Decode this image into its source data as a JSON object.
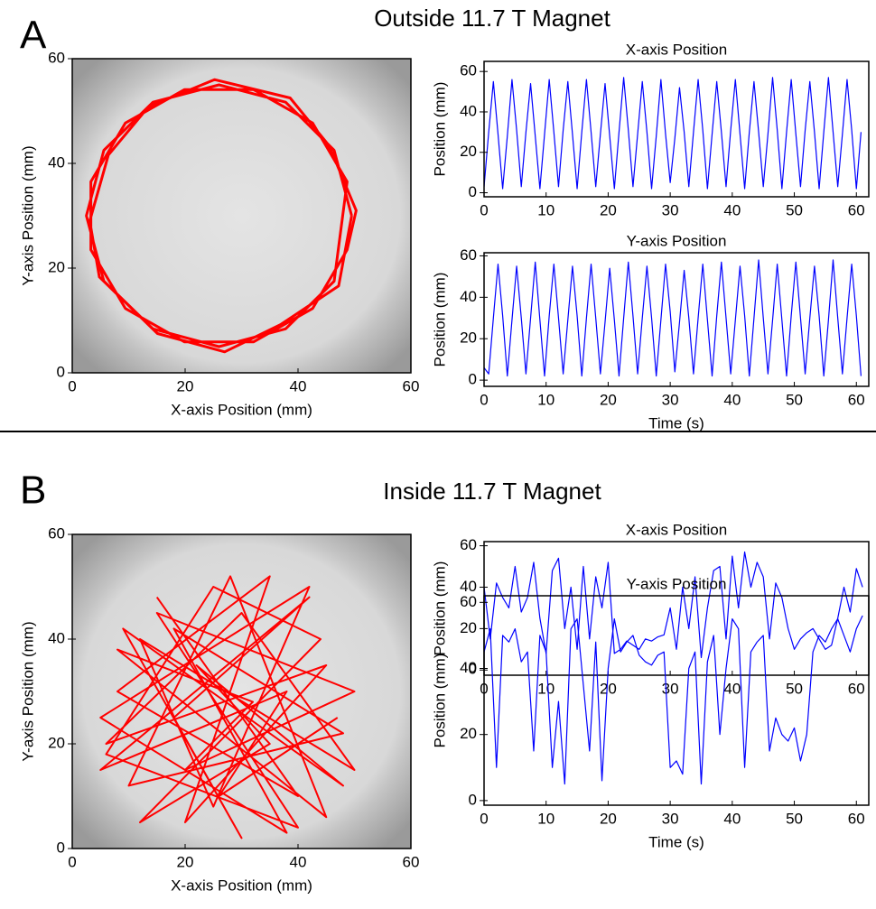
{
  "figure": {
    "panels": [
      {
        "label": "A",
        "title": "Outside 11.7 T Magnet"
      },
      {
        "label": "B",
        "title": "Inside 11.7 T Magnet"
      }
    ]
  },
  "chart_data": [
    {
      "type": "line",
      "xlabel": "X-axis Position (mm)",
      "ylabel": "Y-axis Position (mm)",
      "xlim": [
        0,
        60
      ],
      "ylim": [
        0,
        60
      ],
      "xticks": [
        0,
        20,
        40,
        60
      ],
      "yticks": [
        0,
        20,
        40,
        60
      ],
      "x": [
        49.5,
        46.4,
        37.8,
        26,
        14.3,
        5.6,
        2.5,
        5.6,
        14.3,
        26,
        37.8,
        46.4,
        48.7,
        42.6,
        32.1,
        19.9,
        9.4,
        3.3,
        3.3,
        9.4,
        19.9,
        32.1,
        42.6,
        48.7,
        50.3,
        45.5,
        38.6,
        25.2,
        13.5,
        6.4,
        3.1,
        4.8,
        15.1,
        27,
        36.9,
        47.2,
        49.5
      ],
      "series": [
        {
          "color": "#ff0000",
          "values": [
            30,
            42.5,
            51.7,
            55,
            51.7,
            42.5,
            30,
            17.5,
            8.4,
            5,
            8.4,
            17.5,
            36.5,
            47.7,
            54.1,
            54.1,
            47.7,
            36.5,
            23.5,
            12.3,
            5.9,
            5.9,
            12.3,
            23.5,
            31,
            43.4,
            52.5,
            56,
            50.8,
            41.6,
            29,
            18.3,
            7.5,
            4,
            9.2,
            16.6,
            30
          ]
        }
      ]
    },
    {
      "type": "line",
      "title": "X-axis Position",
      "ylabel": "Position (mm)",
      "xlim": [
        0,
        62
      ],
      "ylim": [
        -2,
        65
      ],
      "xticks": [
        0,
        10,
        20,
        30,
        40,
        50,
        60
      ],
      "yticks": [
        0,
        20,
        40,
        60
      ],
      "x": [
        0,
        0.75,
        1.5,
        2.25,
        3,
        3.75,
        4.5,
        5.25,
        6,
        6.75,
        7.5,
        8.25,
        9,
        9.75,
        10.5,
        11.25,
        12,
        12.75,
        13.5,
        14.25,
        15,
        15.75,
        16.5,
        17.25,
        18,
        18.75,
        19.5,
        20.25,
        21,
        21.75,
        22.5,
        23.25,
        24,
        24.75,
        25.5,
        26.25,
        27,
        27.75,
        28.5,
        29.25,
        30,
        30.75,
        31.5,
        32.25,
        33,
        33.75,
        34.5,
        35.25,
        36,
        36.75,
        37.5,
        38.25,
        39,
        39.75,
        40.5,
        41.25,
        42,
        42.75,
        43.5,
        44.25,
        45,
        45.75,
        46.5,
        47.25,
        48,
        48.75,
        49.5,
        50.25,
        51,
        51.75,
        52.5,
        53.25,
        54,
        54.75,
        55.5,
        56.25,
        57,
        57.75,
        58.5,
        59.25,
        60,
        60.75
      ],
      "series": [
        {
          "color": "#0000ff",
          "values": [
            3,
            30,
            55,
            29,
            2,
            28,
            56,
            31,
            3,
            30,
            54,
            28,
            2,
            29,
            56,
            30,
            3,
            31,
            55,
            29,
            2,
            30,
            56,
            30,
            3,
            29,
            54,
            28,
            2,
            30,
            57,
            31,
            3,
            29,
            55,
            30,
            2,
            28,
            56,
            29,
            5,
            27,
            52,
            30,
            3,
            30,
            56,
            31,
            2,
            29,
            55,
            30,
            3,
            31,
            56,
            29,
            2,
            30,
            55,
            30,
            3,
            29,
            57,
            31,
            2,
            30,
            56,
            29,
            3,
            31,
            55,
            30,
            2,
            30,
            57,
            30,
            3,
            29,
            56,
            31,
            2,
            30
          ]
        }
      ]
    },
    {
      "type": "line",
      "title": "Y-axis Position",
      "xlabel": "Time (s)",
      "ylabel": "Position (mm)",
      "xlim": [
        0,
        62
      ],
      "ylim": [
        -3,
        61.5
      ],
      "xticks": [
        0,
        10,
        20,
        30,
        40,
        50,
        60
      ],
      "yticks": [
        0,
        20,
        40,
        60
      ],
      "x": [
        0,
        0.75,
        1.5,
        2.25,
        3,
        3.75,
        4.5,
        5.25,
        6,
        6.75,
        7.5,
        8.25,
        9,
        9.75,
        10.5,
        11.25,
        12,
        12.75,
        13.5,
        14.25,
        15,
        15.75,
        16.5,
        17.25,
        18,
        18.75,
        19.5,
        20.25,
        21,
        21.75,
        22.5,
        23.25,
        24,
        24.75,
        25.5,
        26.25,
        27,
        27.75,
        28.5,
        29.25,
        30,
        30.75,
        31.5,
        32.25,
        33,
        33.75,
        34.5,
        35.25,
        36,
        36.75,
        37.5,
        38.25,
        39,
        39.75,
        40.5,
        41.25,
        42,
        42.75,
        43.5,
        44.25,
        45,
        45.75,
        46.5,
        47.25,
        48,
        48.75,
        49.5,
        50.25,
        51,
        51.75,
        52.5,
        53.25,
        54,
        54.75,
        55.5,
        56.25,
        57,
        57.75,
        58.5,
        59.25,
        60,
        60.75
      ],
      "series": [
        {
          "color": "#0000ff",
          "values": [
            6,
            3,
            30,
            56,
            31,
            2,
            29,
            55,
            30,
            3,
            30,
            57,
            29,
            2,
            31,
            56,
            30,
            3,
            29,
            55,
            31,
            2,
            30,
            56,
            30,
            3,
            28,
            54,
            29,
            2,
            30,
            57,
            31,
            3,
            30,
            55,
            30,
            2,
            29,
            56,
            33,
            4,
            28,
            53,
            30,
            3,
            30,
            56,
            29,
            2,
            31,
            57,
            30,
            3,
            29,
            55,
            31,
            2,
            30,
            58,
            30,
            3,
            29,
            56,
            29,
            2,
            31,
            57,
            30,
            3,
            30,
            55,
            31,
            2,
            29,
            58,
            30,
            3,
            30,
            56,
            31,
            2
          ]
        }
      ]
    },
    {
      "type": "line",
      "xlabel": "X-axis Position (mm)",
      "ylabel": "Y-axis Position (mm)",
      "xlim": [
        0,
        60
      ],
      "ylim": [
        0,
        60
      ],
      "xticks": [
        0,
        20,
        40,
        60
      ],
      "yticks": [
        0,
        20,
        40,
        60
      ],
      "x": [
        15,
        40,
        8,
        35,
        20,
        45,
        6,
        30,
        50,
        12,
        25,
        42,
        5,
        38,
        18,
        48,
        10,
        28,
        45,
        8,
        32,
        20,
        50,
        15,
        40,
        6,
        25,
        44,
        12,
        35,
        22,
        48,
        9,
        30,
        18,
        42,
        5,
        38,
        26,
        47
      ],
      "series": [
        {
          "color": "#ff0000",
          "values": [
            48,
            10,
            30,
            52,
            5,
            35,
            20,
            45,
            15,
            40,
            8,
            50,
            25,
            3,
            42,
            22,
            12,
            52,
            6,
            38,
            28,
            15,
            30,
            45,
            4,
            18,
            50,
            40,
            5,
            20,
            35,
            12,
            42,
            2,
            25,
            48,
            15,
            30,
            10,
            25
          ]
        }
      ]
    },
    {
      "type": "line",
      "title": "X-axis Position",
      "ylabel": "Position (mm)",
      "xlim": [
        0,
        62
      ],
      "ylim": [
        -2.5,
        62
      ],
      "xticks": [
        0,
        10,
        20,
        30,
        40,
        50,
        60
      ],
      "yticks": [
        0,
        20,
        40,
        60
      ],
      "x": [
        0,
        1,
        2,
        3,
        4,
        5,
        6,
        7,
        8,
        9,
        10,
        11,
        12,
        13,
        14,
        15,
        16,
        17,
        18,
        19,
        20,
        21,
        22,
        23,
        24,
        25,
        26,
        27,
        28,
        29,
        30,
        31,
        32,
        33,
        34,
        35,
        36,
        37,
        38,
        39,
        40,
        41,
        42,
        43,
        44,
        45,
        46,
        47,
        48,
        49,
        50,
        51,
        52,
        53,
        54,
        55,
        56,
        57,
        58,
        59,
        60,
        61
      ],
      "series": [
        {
          "color": "#0000ff",
          "values": [
            40,
            15,
            42,
            35,
            30,
            50,
            28,
            35,
            52,
            25,
            8,
            48,
            54,
            20,
            40,
            10,
            50,
            15,
            45,
            30,
            52,
            8,
            10,
            14,
            12,
            10,
            15,
            14,
            16,
            17,
            30,
            10,
            40,
            20,
            45,
            6,
            30,
            48,
            50,
            15,
            55,
            30,
            57,
            40,
            52,
            45,
            15,
            42,
            35,
            20,
            10,
            15,
            18,
            20,
            15,
            10,
            12,
            25,
            40,
            28,
            49,
            40
          ]
        }
      ]
    },
    {
      "type": "line",
      "title": "Y-axis Position",
      "xlabel": "Time (s)",
      "ylabel": "Position (mm)",
      "xlim": [
        0,
        62
      ],
      "ylim": [
        -1.4,
        62
      ],
      "xticks": [
        0,
        10,
        20,
        30,
        40,
        50,
        60
      ],
      "yticks": [
        0,
        20,
        40,
        60
      ],
      "x": [
        0,
        1,
        2,
        3,
        4,
        5,
        6,
        7,
        8,
        9,
        10,
        11,
        12,
        13,
        14,
        15,
        16,
        17,
        18,
        19,
        20,
        21,
        22,
        23,
        24,
        25,
        26,
        27,
        28,
        29,
        30,
        31,
        32,
        33,
        34,
        35,
        36,
        37,
        38,
        39,
        40,
        41,
        42,
        43,
        44,
        45,
        46,
        47,
        48,
        49,
        50,
        51,
        52,
        53,
        54,
        55,
        56,
        57,
        58,
        59,
        60,
        61
      ],
      "series": [
        {
          "color": "#0000ff",
          "values": [
            45,
            52,
            10,
            50,
            48,
            52,
            42,
            45,
            15,
            50,
            45,
            10,
            30,
            5,
            52,
            55,
            35,
            15,
            48,
            6,
            40,
            55,
            45,
            48,
            50,
            44,
            42,
            41,
            44,
            45,
            10,
            12,
            8,
            40,
            45,
            5,
            42,
            50,
            20,
            40,
            55,
            52,
            10,
            45,
            48,
            50,
            15,
            25,
            20,
            18,
            22,
            12,
            20,
            45,
            50,
            48,
            52,
            55,
            50,
            45,
            52,
            56
          ]
        }
      ]
    }
  ]
}
